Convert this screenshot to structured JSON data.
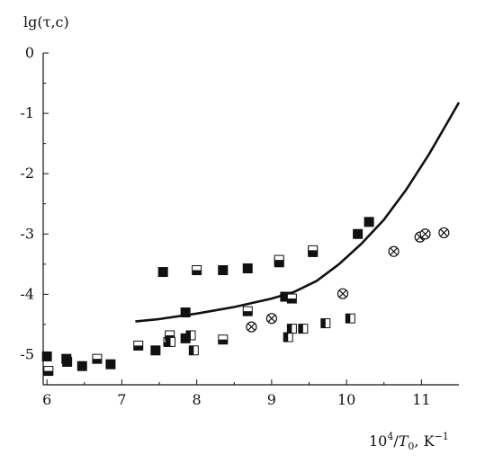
{
  "chart_data": {
    "type": "scatter",
    "ylabel": "lg(τ,c)",
    "xlabel_parts": {
      "base": "10",
      "exp": "4",
      "slash": "/",
      "var": "T",
      "sub": "0",
      "unit": ", K",
      "unit_exp": "−1"
    },
    "xlim": [
      5.95,
      11.5
    ],
    "ylim": [
      -5.5,
      0
    ],
    "x_ticks": [
      6,
      7,
      8,
      9,
      10,
      11
    ],
    "x_tick_labels": [
      "6",
      "7",
      "8",
      "9",
      "10",
      "11"
    ],
    "y_ticks": [
      0,
      -1,
      -2,
      -3,
      -4,
      -5
    ],
    "y_tick_labels": [
      "0",
      "-1",
      "-2",
      "-3",
      "-4",
      "-5"
    ],
    "grid": false,
    "series": [
      {
        "marker": "filled-square",
        "points": [
          [
            6.0,
            -5.03
          ],
          [
            6.27,
            -5.12
          ],
          [
            6.26,
            -5.07
          ],
          [
            6.47,
            -5.19
          ],
          [
            6.85,
            -5.16
          ],
          [
            7.45,
            -4.93
          ],
          [
            7.55,
            -3.63
          ],
          [
            7.85,
            -4.3
          ],
          [
            7.85,
            -4.73
          ],
          [
            8.35,
            -3.6
          ],
          [
            8.68,
            -3.57
          ],
          [
            9.1,
            -3.47
          ],
          [
            9.18,
            -4.04
          ],
          [
            9.55,
            -3.3
          ],
          [
            10.15,
            -3.0
          ],
          [
            10.3,
            -2.8
          ]
        ]
      },
      {
        "marker": "half-filled-square-bottom",
        "points": [
          [
            6.02,
            -5.27
          ],
          [
            6.67,
            -5.07
          ],
          [
            7.22,
            -4.85
          ],
          [
            7.62,
            -4.79
          ],
          [
            7.64,
            -4.68
          ],
          [
            8.0,
            -3.6
          ],
          [
            8.68,
            -4.28
          ],
          [
            8.35,
            -4.75
          ],
          [
            9.1,
            -3.43
          ],
          [
            9.55,
            -3.27
          ],
          [
            9.27,
            -4.07
          ]
        ]
      },
      {
        "marker": "half-filled-square-left",
        "points": [
          [
            7.65,
            -4.79
          ],
          [
            7.92,
            -4.68
          ],
          [
            7.96,
            -4.93
          ],
          [
            9.22,
            -4.71
          ],
          [
            9.27,
            -4.57
          ],
          [
            9.42,
            -4.57
          ],
          [
            9.72,
            -4.48
          ],
          [
            10.05,
            -4.4
          ]
        ]
      },
      {
        "marker": "circle-cross",
        "points": [
          [
            8.73,
            -4.54
          ],
          [
            9.0,
            -4.4
          ],
          [
            9.95,
            -3.99
          ],
          [
            10.63,
            -3.29
          ],
          [
            10.98,
            -3.05
          ],
          [
            11.05,
            -3.0
          ],
          [
            11.3,
            -2.98
          ]
        ]
      }
    ],
    "curve": {
      "points": [
        [
          7.18,
          -4.45
        ],
        [
          7.5,
          -4.41
        ],
        [
          8.0,
          -4.32
        ],
        [
          8.5,
          -4.21
        ],
        [
          9.0,
          -4.07
        ],
        [
          9.3,
          -3.96
        ],
        [
          9.6,
          -3.78
        ],
        [
          9.9,
          -3.5
        ],
        [
          10.2,
          -3.16
        ],
        [
          10.5,
          -2.76
        ],
        [
          10.8,
          -2.26
        ],
        [
          11.1,
          -1.68
        ],
        [
          11.3,
          -1.25
        ],
        [
          11.5,
          -0.82
        ]
      ]
    }
  }
}
